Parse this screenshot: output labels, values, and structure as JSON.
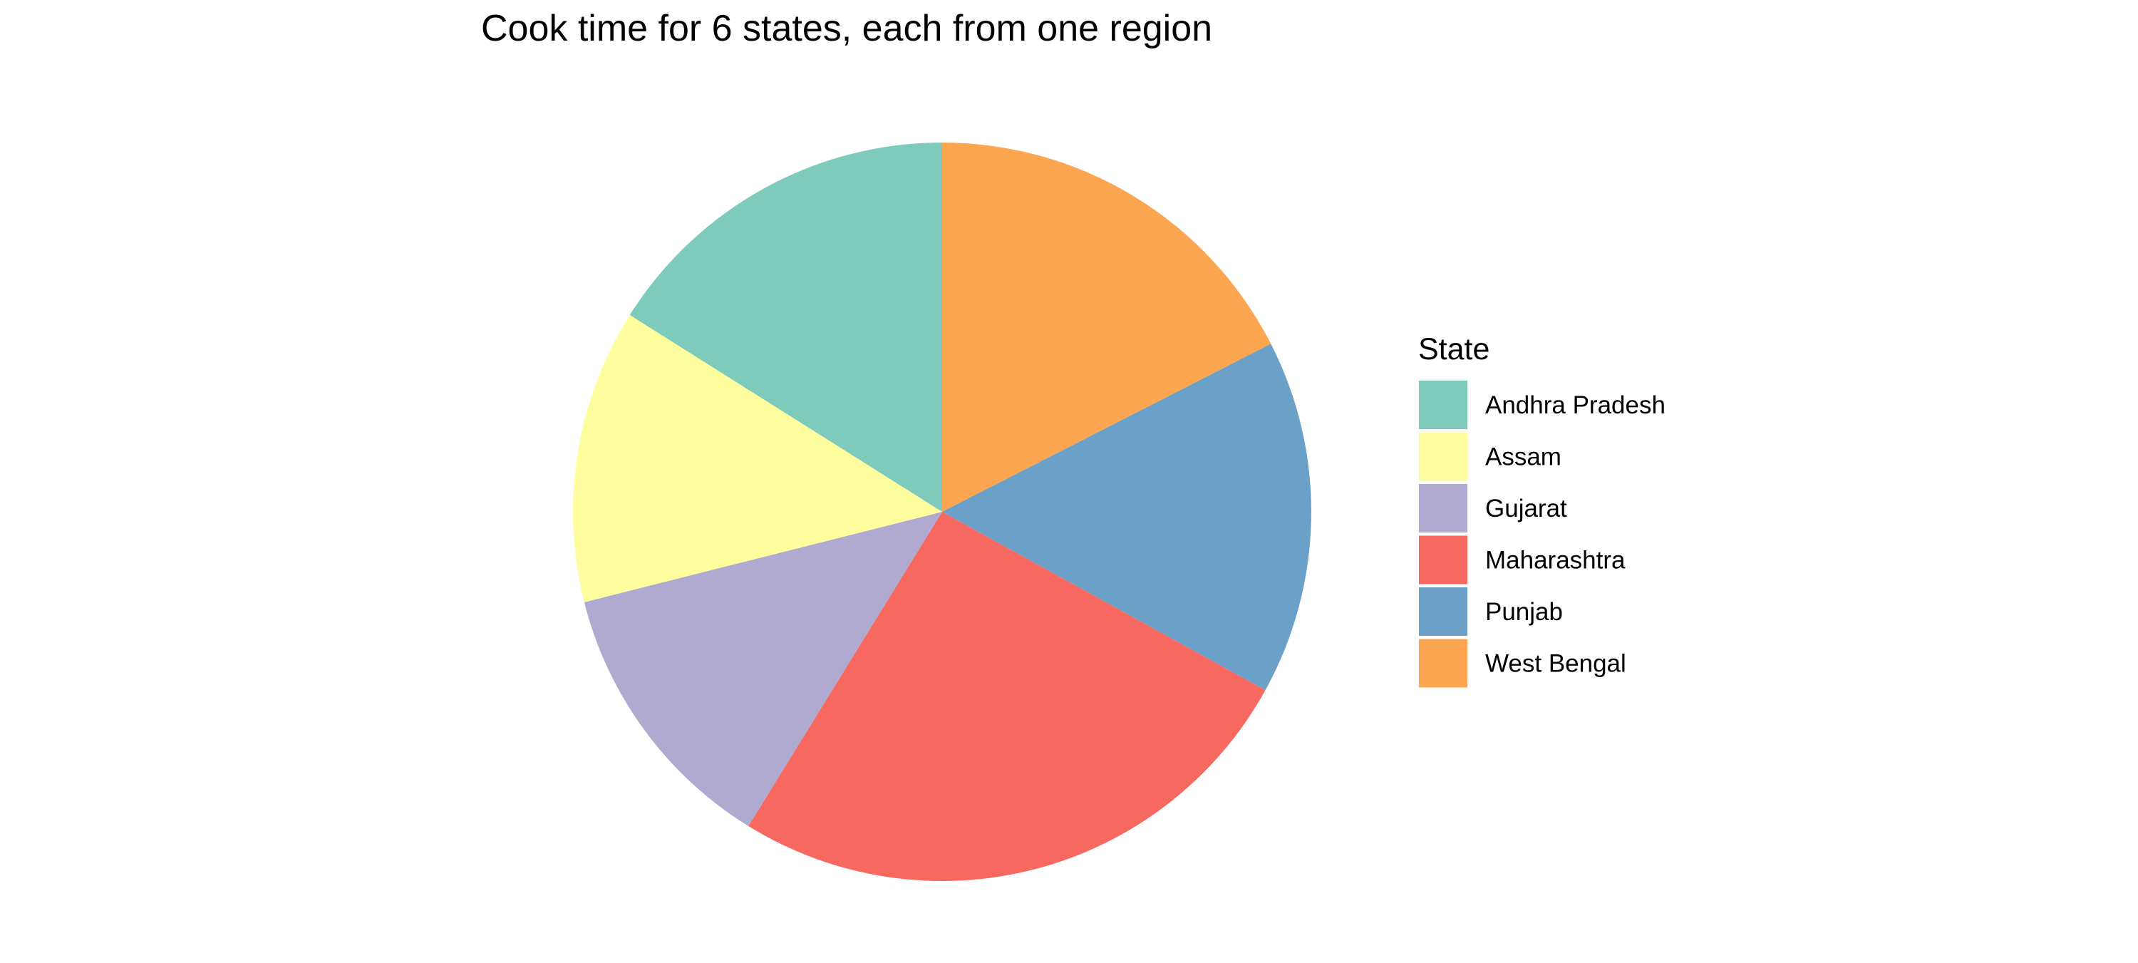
{
  "chart_data": {
    "type": "pie",
    "title": "Cook time for 6 states, each from one region",
    "legend": {
      "title": "State",
      "position": "right"
    },
    "start_angle_deg": 0,
    "direction": "clockwise",
    "slices": [
      {
        "label": "West Bengal",
        "value": 17.1,
        "color": "#FCA652"
      },
      {
        "label": "Punjab",
        "value": 15.2,
        "color": "#6BA1C9"
      },
      {
        "label": "Maharashtra",
        "value": 25.2,
        "color": "#F76960"
      },
      {
        "label": "Gujarat",
        "value": 12.0,
        "color": "#B0AAD0"
      },
      {
        "label": "Assam",
        "value": 12.6,
        "color": "#FEFE9F"
      },
      {
        "label": "Andhra Pradesh",
        "value": 15.7,
        "color": "#7ECBBB"
      }
    ],
    "legend_order": [
      "Andhra Pradesh",
      "Assam",
      "Gujarat",
      "Maharashtra",
      "Punjab",
      "West Bengal"
    ]
  }
}
